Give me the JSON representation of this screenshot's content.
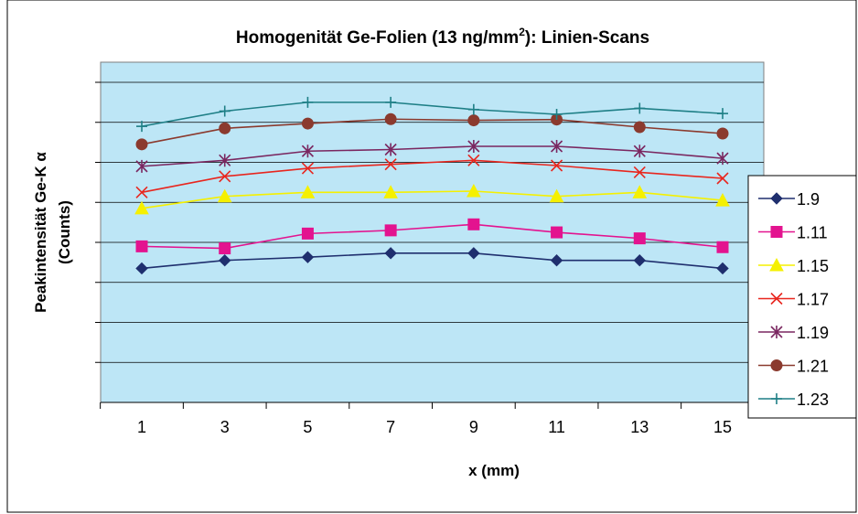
{
  "chart_data": {
    "type": "line",
    "title_main": "Homogenität Ge-Folien (13 ng/mm",
    "title_sup": "2",
    "title_tail": "): Linien-Scans",
    "xlabel": "x (mm)",
    "ylabel_line1": "Peakintensität Ge-K α",
    "ylabel_line2": "(Counts)",
    "x": [
      1,
      3,
      5,
      7,
      9,
      11,
      13,
      15
    ],
    "x_tick_labels": [
      "1",
      "3",
      "5",
      "7",
      "9",
      "11",
      "13",
      "15"
    ],
    "y_range": [
      0,
      8
    ],
    "y_tick_count": 8,
    "y_tick_labels_shown": false,
    "grid": "horizontal",
    "plot_background": "#BDE6F6",
    "legend_position": "right",
    "series": [
      {
        "name": "1.9",
        "color": "#1F2F6E",
        "marker": "diamond",
        "values": [
          3.35,
          3.55,
          3.63,
          3.73,
          3.73,
          3.55,
          3.55,
          3.35
        ]
      },
      {
        "name": "1.11",
        "color": "#E3138F",
        "marker": "square",
        "values": [
          3.9,
          3.85,
          4.22,
          4.3,
          4.45,
          4.25,
          4.1,
          3.88
        ]
      },
      {
        "name": "1.15",
        "color": "#F5F000",
        "marker": "triangle",
        "values": [
          4.85,
          5.15,
          5.25,
          5.25,
          5.28,
          5.15,
          5.25,
          5.05
        ]
      },
      {
        "name": "1.17",
        "color": "#E8261E",
        "marker": "x",
        "values": [
          5.25,
          5.65,
          5.85,
          5.95,
          6.05,
          5.92,
          5.75,
          5.6
        ]
      },
      {
        "name": "1.19",
        "color": "#7A2760",
        "marker": "star",
        "values": [
          5.9,
          6.05,
          6.28,
          6.32,
          6.4,
          6.4,
          6.28,
          6.1
        ]
      },
      {
        "name": "1.21",
        "color": "#8B3A2E",
        "marker": "circle",
        "values": [
          6.45,
          6.85,
          6.97,
          7.08,
          7.05,
          7.07,
          6.88,
          6.72
        ]
      },
      {
        "name": "1.23",
        "color": "#1E7F86",
        "marker": "plus",
        "values": [
          6.9,
          7.28,
          7.5,
          7.5,
          7.32,
          7.2,
          7.35,
          7.22
        ]
      }
    ]
  }
}
